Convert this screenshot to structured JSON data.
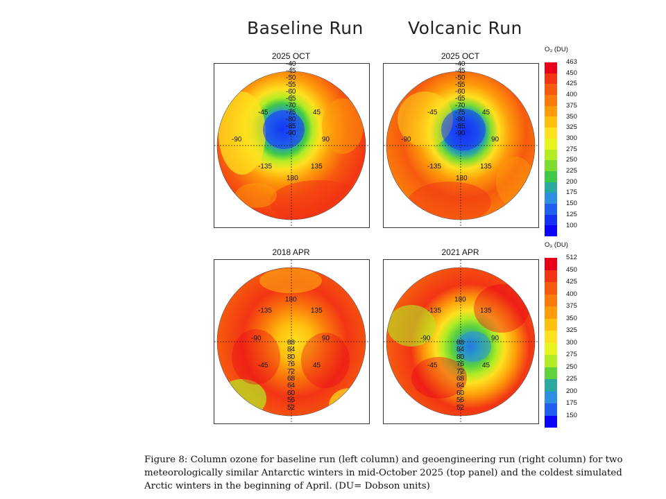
{
  "headers": {
    "left": "Baseline Run",
    "right": "Volcanic Run"
  },
  "panels": {
    "tl": {
      "title": "2025 OCT"
    },
    "tr": {
      "title": "2025 OCT"
    },
    "bl": {
      "title": "2018 APR"
    },
    "br": {
      "title": "2021 APR"
    }
  },
  "south_labels": {
    "lats": [
      "-40",
      "-45",
      "-50",
      "-55",
      "-60",
      "-65",
      "-70",
      "-75",
      "-80",
      "-85",
      "-90"
    ],
    "lons": {
      "w45": "-45",
      "e45": "45",
      "w90": "-90",
      "e90": "90",
      "w135": "-135",
      "e135": "135",
      "s180": "180"
    }
  },
  "north_labels": {
    "lats": [
      "88",
      "84",
      "80",
      "76",
      "72",
      "68",
      "64",
      "60",
      "56",
      "52"
    ],
    "lons": {
      "n180": "180",
      "w135": "-135",
      "e135": "135",
      "w90": "-90",
      "e90": "90",
      "w45": "-45",
      "e45": "45"
    }
  },
  "colorbars": {
    "top": {
      "label": "O₃ (DU)",
      "ticks": [
        "463",
        "450",
        "425",
        "400",
        "375",
        "350",
        "325",
        "300",
        "275",
        "250",
        "225",
        "200",
        "175",
        "150",
        "125",
        "100"
      ],
      "colors": [
        "#e8001a",
        "#f23514",
        "#f65a0e",
        "#fa7a0a",
        "#fd9b0a",
        "#ffc00f",
        "#ffe020",
        "#e6f520",
        "#b2ec25",
        "#7ddc32",
        "#3fc84a",
        "#2aa9a0",
        "#2c8fe0",
        "#2060ee",
        "#1431f5",
        "#0a05f8"
      ]
    },
    "bottom": {
      "label": "O₃ (DU)",
      "ticks": [
        "512",
        "450",
        "425",
        "400",
        "375",
        "350",
        "325",
        "300",
        "275",
        "250",
        "225",
        "200",
        "175",
        "150"
      ],
      "colors": [
        "#e8001a",
        "#f23514",
        "#f65a0e",
        "#fa7a0a",
        "#fd9b0a",
        "#ffc00f",
        "#ffe020",
        "#e6f520",
        "#b2ec25",
        "#5fd23c",
        "#2aa9a0",
        "#2c8fe0",
        "#2060ee",
        "#0a05f8"
      ]
    }
  },
  "caption": "Figure 8: Column ozone for baseline run (left column) and geoengineering run (right column) for two meteorologically similar Antarctic winters in mid-October 2025 (top panel) and the coldest simulated Arctic winters in the beginning of April. (DU= Dobson units)"
}
